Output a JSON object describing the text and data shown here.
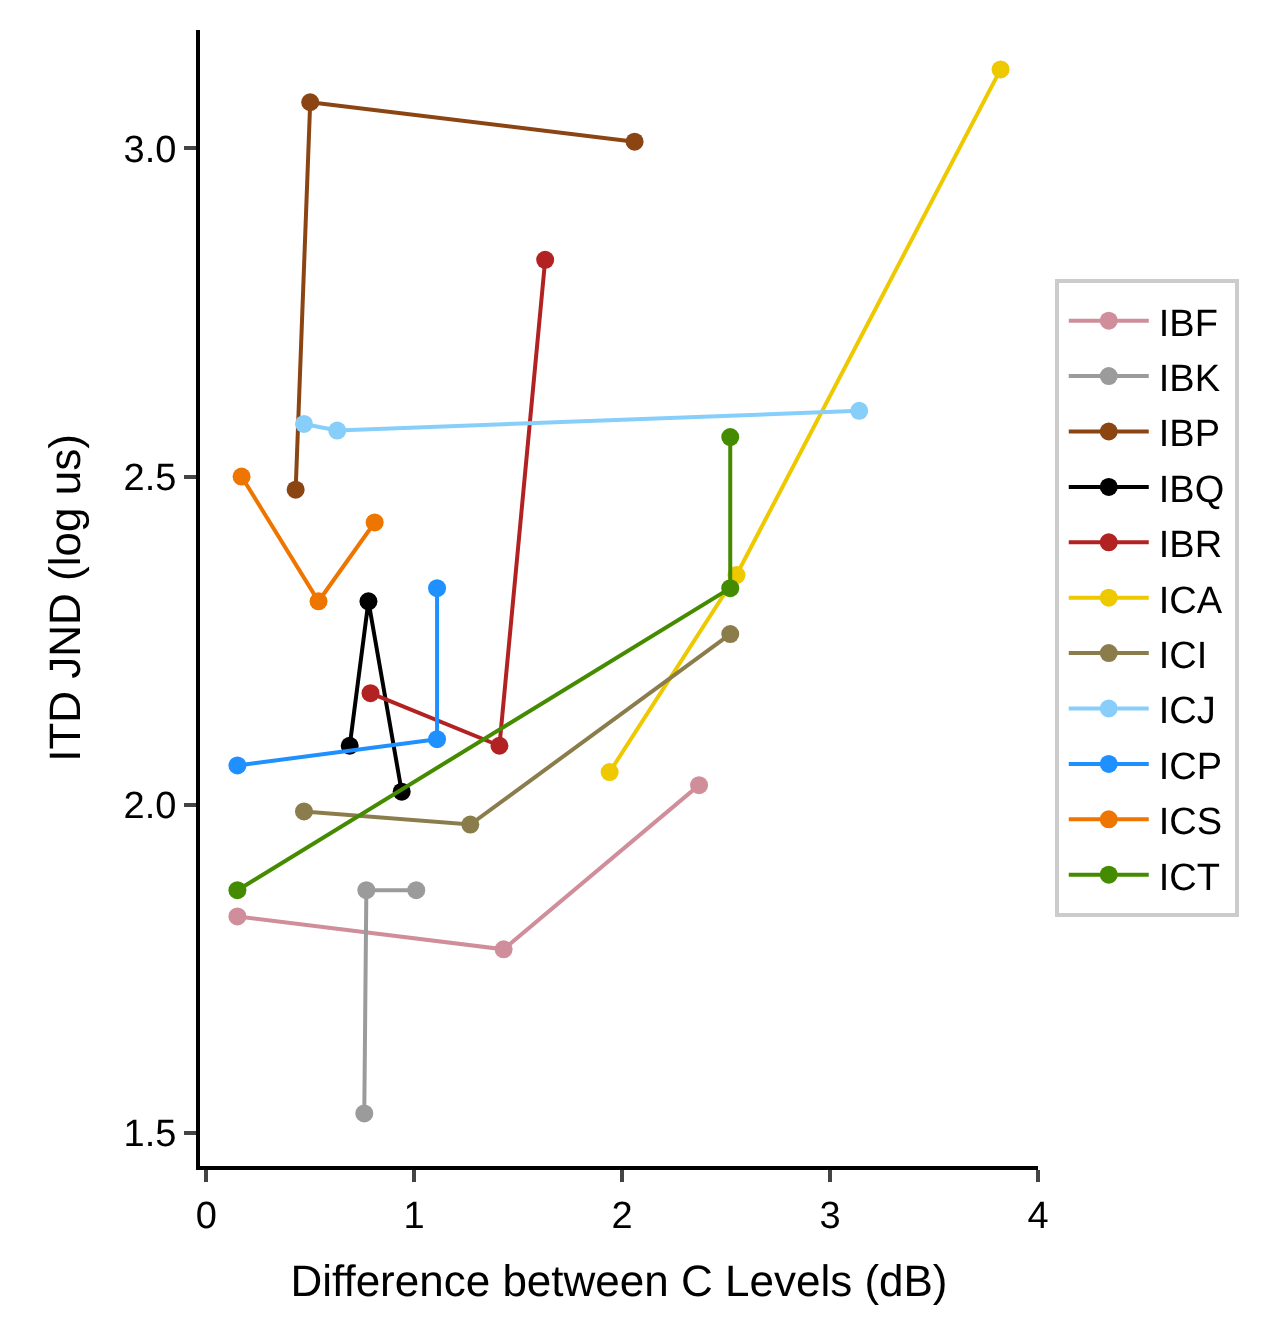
{
  "chart_data": {
    "type": "line",
    "xlabel": "Difference between C Levels (dB)",
    "ylabel": "ITD JND (log us)",
    "xlim": [
      -0.03,
      4.0
    ],
    "ylim": [
      1.45,
      3.18
    ],
    "xticks": [
      0,
      1,
      2,
      3,
      4
    ],
    "yticks": [
      {
        "value": 1.5,
        "label": "1.5"
      },
      {
        "value": 2.0,
        "label": "2.0"
      },
      {
        "value": 2.5,
        "label": "2.5"
      },
      {
        "value": 3.0,
        "label": "3.0"
      }
    ],
    "legend": "right",
    "marker": "circle",
    "line_style": "solid",
    "series": [
      {
        "name": "IBF",
        "color": "#d08e9b",
        "x": [
          0.15,
          1.43,
          2.37
        ],
        "values": [
          1.83,
          1.78,
          2.03
        ]
      },
      {
        "name": "IBK",
        "color": "#9b9b9b",
        "x": [
          1.01,
          0.77,
          0.76
        ],
        "values": [
          1.87,
          1.87,
          1.53
        ]
      },
      {
        "name": "IBP",
        "color": "#8b4513",
        "x": [
          0.43,
          0.5,
          2.06
        ],
        "values": [
          2.48,
          3.07,
          3.01
        ]
      },
      {
        "name": "IBQ",
        "color": "#000000",
        "x": [
          0.69,
          0.78,
          0.94
        ],
        "values": [
          2.09,
          2.31,
          2.02
        ]
      },
      {
        "name": "IBR",
        "color": "#b22222",
        "x": [
          0.79,
          1.41,
          1.63
        ],
        "values": [
          2.17,
          2.09,
          2.83
        ]
      },
      {
        "name": "ICA",
        "color": "#eec900",
        "x": [
          1.94,
          2.55,
          3.82
        ],
        "values": [
          2.05,
          2.35,
          3.12
        ]
      },
      {
        "name": "ICI",
        "color": "#8b7d4b",
        "x": [
          0.47,
          1.27,
          2.52
        ],
        "values": [
          1.99,
          1.97,
          2.26
        ]
      },
      {
        "name": "ICJ",
        "color": "#87cefa",
        "x": [
          0.47,
          0.63,
          3.14
        ],
        "values": [
          2.58,
          2.57,
          2.6
        ]
      },
      {
        "name": "ICP",
        "color": "#1e90ff",
        "x": [
          0.15,
          1.11,
          1.11
        ],
        "values": [
          2.06,
          2.1,
          2.33
        ]
      },
      {
        "name": "ICS",
        "color": "#ee7600",
        "x": [
          0.17,
          0.54,
          0.81
        ],
        "values": [
          2.5,
          2.31,
          2.43
        ]
      },
      {
        "name": "ICT",
        "color": "#458b00",
        "x": [
          0.15,
          2.52,
          2.52
        ],
        "values": [
          1.87,
          2.33,
          2.56
        ]
      }
    ]
  }
}
